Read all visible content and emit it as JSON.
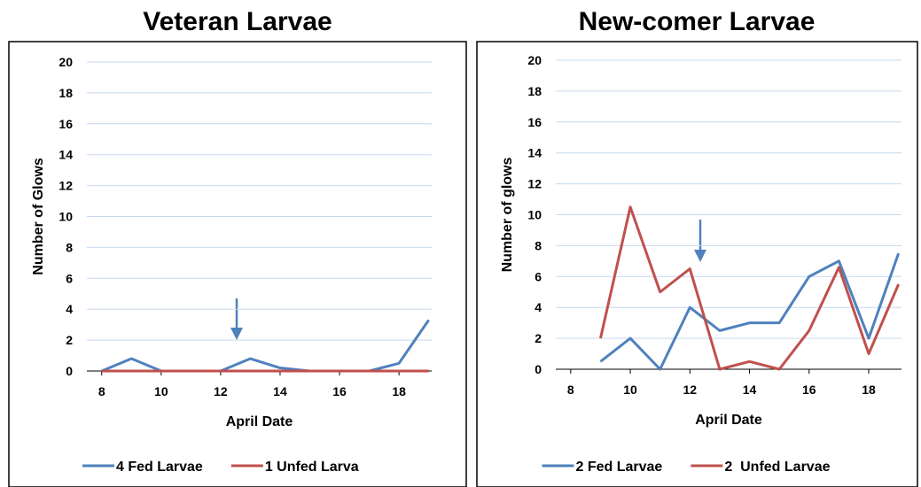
{
  "chart_data": [
    {
      "type": "line",
      "title": "Veteran Larvae",
      "xlabel": "April Date",
      "ylabel": "Number of Glows",
      "x": [
        8,
        9,
        10,
        11,
        12,
        13,
        14,
        15,
        16,
        17,
        18,
        19
      ],
      "series": [
        {
          "name": "4 Fed Larvae",
          "color": "#4f81bd",
          "values": [
            0,
            0.8,
            0,
            0,
            0,
            0.8,
            0.2,
            0,
            0,
            0,
            0.5,
            3.3
          ]
        },
        {
          "name": "1 Unfed Larva",
          "color": "#c0504d",
          "values": [
            0,
            0,
            0,
            0,
            0,
            0,
            0,
            0,
            0,
            0,
            0,
            0
          ]
        }
      ],
      "xlim": [
        7.5,
        19.1
      ],
      "ylim": [
        0,
        20
      ],
      "xticks": [
        8,
        10,
        12,
        14,
        16,
        18
      ],
      "yticks": [
        0,
        2,
        4,
        6,
        8,
        10,
        12,
        14,
        16,
        18,
        20
      ],
      "grid": true,
      "legend": "bottom"
    },
    {
      "type": "line",
      "title": "New-comer Larvae",
      "xlabel": "April Date",
      "ylabel": "Number of glows",
      "x": [
        9,
        10,
        11,
        12,
        13,
        14,
        15,
        16,
        17,
        18,
        19
      ],
      "series": [
        {
          "name": "2 Fed Larvae",
          "color": "#4f81bd",
          "values": [
            0.5,
            2,
            0,
            4,
            2.5,
            3,
            3,
            6,
            7,
            2,
            7.5
          ]
        },
        {
          "name": "2  Unfed Larvae",
          "color": "#c0504d",
          "values": [
            2,
            10.5,
            5,
            6.5,
            0,
            0.5,
            0,
            2.5,
            6.6,
            1,
            5.5
          ]
        }
      ],
      "xlim": [
        7.5,
        19.1
      ],
      "ylim": [
        0,
        20
      ],
      "xticks": [
        8,
        10,
        12,
        14,
        16,
        18
      ],
      "yticks": [
        0,
        2,
        4,
        6,
        8,
        10,
        12,
        14,
        16,
        18,
        20
      ],
      "grid": true,
      "legend": "bottom"
    }
  ]
}
